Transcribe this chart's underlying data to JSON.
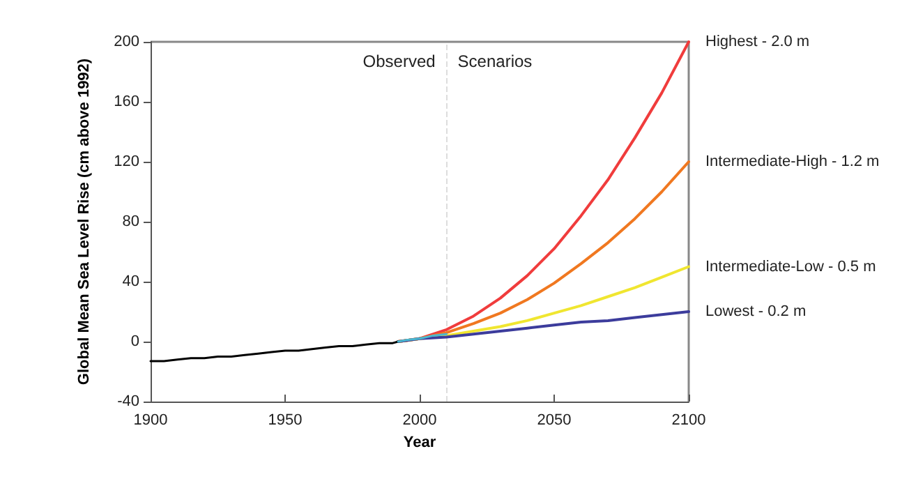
{
  "chart_data": {
    "type": "line",
    "xlabel": "Year",
    "ylabel": "Global Mean Sea Level Rise (cm above 1992)",
    "xlim": [
      1900,
      2100
    ],
    "xticks": [
      1900,
      1950,
      2000,
      2050,
      2100
    ],
    "ylim": [
      -40,
      200
    ],
    "yticks": [
      -40,
      0,
      40,
      80,
      120,
      160,
      200
    ],
    "grid": false,
    "legend": false,
    "marker": "none",
    "line_style": "solid",
    "series": [
      {
        "color": "#000000",
        "x": [
          1900,
          1905,
          1910,
          1915,
          1920,
          1925,
          1930,
          1935,
          1940,
          1945,
          1950,
          1955,
          1960,
          1965,
          1970,
          1975,
          1980,
          1985,
          1990,
          1992
        ],
        "values": [
          -13,
          -13,
          -12,
          -11,
          -11,
          -10,
          -10,
          -9,
          -8,
          -7,
          -6,
          -6,
          -5,
          -4,
          -3,
          -3,
          -2,
          -1,
          -1,
          0
        ]
      },
      {
        "color": "#4bb8d0",
        "x": [
          1992,
          1995,
          2000,
          2005,
          2010
        ],
        "values": [
          0,
          1,
          2,
          4,
          5
        ]
      },
      {
        "name": "Highest - 2.0 m",
        "color": "#f03c3c",
        "x": [
          1992,
          2000,
          2010,
          2020,
          2030,
          2040,
          2050,
          2060,
          2070,
          2080,
          2090,
          2100
        ],
        "values": [
          0,
          2,
          8,
          17,
          29,
          44,
          62,
          84,
          108,
          136,
          166,
          200
        ]
      },
      {
        "name": "Intermediate-High - 1.2 m",
        "color": "#f07820",
        "x": [
          1992,
          2000,
          2010,
          2020,
          2030,
          2040,
          2050,
          2060,
          2070,
          2080,
          2090,
          2100
        ],
        "values": [
          0,
          2,
          6,
          12,
          19,
          28,
          39,
          52,
          66,
          82,
          100,
          120
        ]
      },
      {
        "name": "Intermediate-Low - 0.5 m",
        "color": "#f0e630",
        "x": [
          1992,
          2000,
          2010,
          2020,
          2030,
          2040,
          2050,
          2060,
          2070,
          2080,
          2090,
          2100
        ],
        "values": [
          0,
          2,
          4,
          7,
          10,
          14,
          19,
          24,
          30,
          36,
          43,
          50
        ]
      },
      {
        "name": "Lowest - 0.2 m",
        "color": "#3c3c9c",
        "x": [
          1992,
          2000,
          2010,
          2020,
          2030,
          2040,
          2050,
          2060,
          2070,
          2080,
          2090,
          2100
        ],
        "values": [
          0,
          2,
          3,
          5,
          7,
          9,
          11,
          13,
          14,
          16,
          18,
          20
        ]
      }
    ],
    "ref_lines": [
      {
        "axis": "x",
        "value": 2010,
        "label": null,
        "color": "#dddddd",
        "line_style": "dashed"
      }
    ],
    "annotations": [
      "Observed",
      "Scenarios"
    ]
  }
}
